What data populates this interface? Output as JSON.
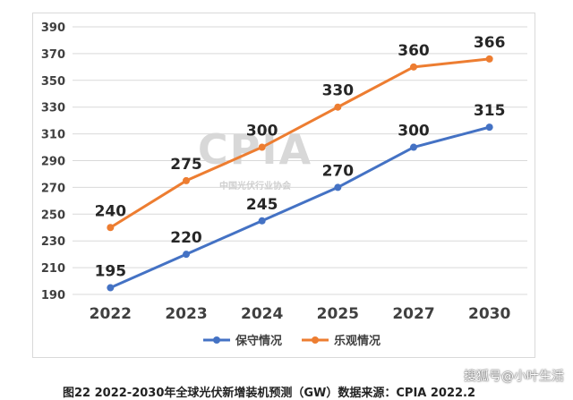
{
  "chart_data": {
    "type": "line",
    "categories": [
      "2022",
      "2023",
      "2024",
      "2025",
      "2027",
      "2030"
    ],
    "series": [
      {
        "name": "保守情况",
        "values": [
          195,
          220,
          245,
          270,
          300,
          315
        ],
        "color": "#4472c4"
      },
      {
        "name": "乐观情况",
        "values": [
          240,
          275,
          300,
          330,
          360,
          366
        ],
        "color": "#ed7d31"
      }
    ],
    "yticks": [
      190,
      210,
      230,
      250,
      270,
      290,
      310,
      330,
      350,
      370,
      390
    ],
    "ylim": [
      190,
      390
    ],
    "grid": true,
    "legend_position": "bottom"
  },
  "watermark": {
    "text": "CPIA",
    "subtext": "中国光伏行业协会"
  },
  "caption": "图22 2022-2030年全球光伏新增装机预测（GW）数据来源：CPIA 2022.2",
  "source_mark": "搜狐号@小叶生活"
}
